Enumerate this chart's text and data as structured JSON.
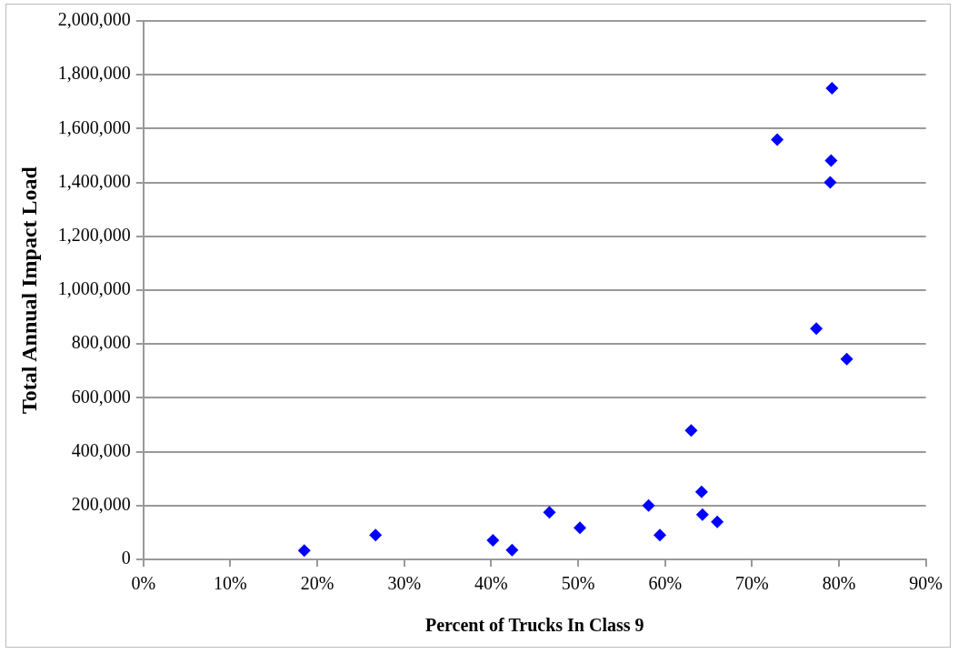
{
  "chart_data": {
    "type": "scatter",
    "xlabel": "Percent of Trucks In Class 9",
    "ylabel": "Total Annual Impact Load",
    "x": [
      18.5,
      26.7,
      40.2,
      42.4,
      46.7,
      50.2,
      58.1,
      59.4,
      63.0,
      64.2,
      64.3,
      66.0,
      72.9,
      79.2,
      79.1,
      79.0,
      77.4,
      80.9
    ],
    "series": [
      {
        "color": "#0000ff",
        "values": [
          33000,
          90000,
          71000,
          35000,
          175000,
          117000,
          200000,
          90000,
          479000,
          251000,
          166000,
          139000,
          1559000,
          1750000,
          1481000,
          1400000,
          857000,
          744000
        ]
      }
    ],
    "xlim": [
      0,
      90
    ],
    "xticks": [
      {
        "value": 0,
        "label": "0%"
      },
      {
        "value": 10,
        "label": "10%"
      },
      {
        "value": 20,
        "label": "20%"
      },
      {
        "value": 30,
        "label": "30%"
      },
      {
        "value": 40,
        "label": "40%"
      },
      {
        "value": 50,
        "label": "50%"
      },
      {
        "value": 60,
        "label": "60%"
      },
      {
        "value": 70,
        "label": "70%"
      },
      {
        "value": 80,
        "label": "80%"
      },
      {
        "value": 90,
        "label": "90%"
      }
    ],
    "ylim": [
      0,
      2000000
    ],
    "yticks": [
      {
        "value": 0,
        "label": "0"
      },
      {
        "value": 200000,
        "label": "200,000"
      },
      {
        "value": 400000,
        "label": "400,000"
      },
      {
        "value": 600000,
        "label": "600,000"
      },
      {
        "value": 800000,
        "label": "800,000"
      },
      {
        "value": 1000000,
        "label": "1,000,000"
      },
      {
        "value": 1200000,
        "label": "1,200,000"
      },
      {
        "value": 1400000,
        "label": "1,400,000"
      },
      {
        "value": 1600000,
        "label": "1,600,000"
      },
      {
        "value": 1800000,
        "label": "1,800,000"
      },
      {
        "value": 2000000,
        "label": "2,000,000"
      }
    ],
    "grid": "y",
    "marker": "diamond"
  }
}
